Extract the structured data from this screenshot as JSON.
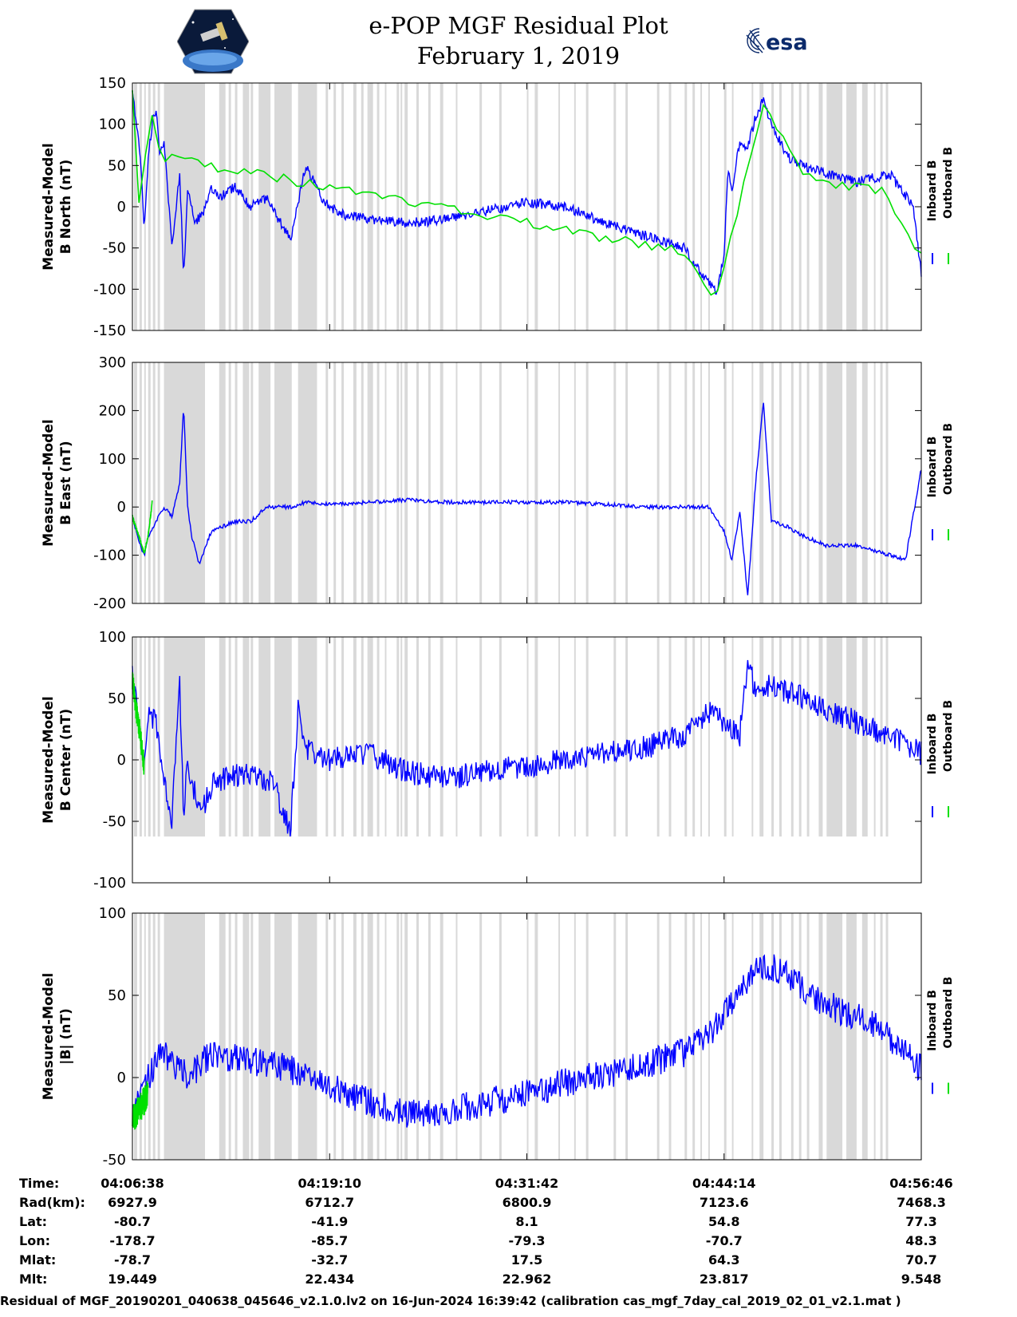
{
  "header": {
    "title": "e-POP MGF Residual Plot",
    "date": "February 1, 2019",
    "logo_left": "CASSIOPE mission patch",
    "logo_right": "esa"
  },
  "colors": {
    "inboard": "#0000ff",
    "outboard": "#00e000",
    "shade": "#d9d9d9",
    "axis": "#000000"
  },
  "legend": {
    "inboard": "Inboard B",
    "outboard": "Outboard B"
  },
  "chart_data": [
    {
      "type": "line",
      "ylabel_line1": "Measured-Model",
      "ylabel_line2": "B North (nT)",
      "ylim": [
        -150,
        150
      ],
      "yticks": [
        "150",
        "100",
        "50",
        "0",
        "-50",
        "-100",
        "-150"
      ],
      "ytick_values": [
        150,
        100,
        50,
        0,
        -50,
        -100,
        -150
      ],
      "series": [
        {
          "name": "Inboard B",
          "x": [
            0,
            0.01,
            0.015,
            0.02,
            0.025,
            0.03,
            0.035,
            0.04,
            0.05,
            0.06,
            0.065,
            0.07,
            0.08,
            0.09,
            0.1,
            0.11,
            0.13,
            0.15,
            0.17,
            0.2,
            0.22,
            0.24,
            0.25,
            0.27,
            0.3,
            0.35,
            0.4,
            0.45,
            0.5,
            0.55,
            0.6,
            0.65,
            0.7,
            0.72,
            0.74,
            0.75,
            0.755,
            0.76,
            0.77,
            0.78,
            0.79,
            0.8,
            0.81,
            0.82,
            0.83,
            0.85,
            0.88,
            0.92,
            0.96,
            0.99,
            1.0
          ],
          "y": [
            140,
            60,
            -25,
            60,
            100,
            120,
            60,
            80,
            -50,
            40,
            -85,
            20,
            -20,
            -5,
            20,
            10,
            25,
            0,
            10,
            -40,
            50,
            10,
            0,
            -10,
            -15,
            -20,
            -15,
            -5,
            5,
            0,
            -20,
            -35,
            -50,
            -80,
            -105,
            -60,
            50,
            20,
            80,
            70,
            110,
            130,
            100,
            80,
            60,
            50,
            40,
            30,
            40,
            0,
            -80
          ]
        },
        {
          "name": "Outboard B",
          "x": [
            0,
            0.005,
            0.01,
            0.015,
            0.02,
            0.025,
            0.03,
            0.035,
            0.04,
            0.7,
            0.72,
            0.74,
            0.75,
            0.8,
            0.85,
            0.9,
            0.95,
            1.0
          ],
          "y": [
            145,
            50,
            -10,
            50,
            90,
            115,
            70,
            75,
            60,
            -55,
            -85,
            -110,
            -70,
            120,
            40,
            25,
            20,
            -60
          ]
        }
      ]
    },
    {
      "type": "line",
      "ylabel_line1": "Measured-Model",
      "ylabel_line2": "B East (nT)",
      "ylim": [
        -200,
        300
      ],
      "yticks": [
        "300",
        "200",
        "100",
        "0",
        "-100",
        "-200"
      ],
      "ytick_values": [
        300,
        200,
        100,
        0,
        -100,
        -200
      ],
      "series": [
        {
          "name": "Inboard B",
          "x": [
            0,
            0.01,
            0.015,
            0.02,
            0.03,
            0.04,
            0.05,
            0.06,
            0.065,
            0.07,
            0.075,
            0.085,
            0.1,
            0.13,
            0.15,
            0.17,
            0.2,
            0.22,
            0.25,
            0.3,
            0.35,
            0.4,
            0.45,
            0.5,
            0.55,
            0.6,
            0.65,
            0.7,
            0.73,
            0.75,
            0.76,
            0.77,
            0.78,
            0.79,
            0.8,
            0.81,
            0.83,
            0.85,
            0.88,
            0.92,
            0.96,
            0.98,
            1.0
          ],
          "y": [
            -20,
            -80,
            -100,
            -60,
            -30,
            0,
            -20,
            50,
            210,
            0,
            -60,
            -120,
            -50,
            -30,
            -30,
            0,
            0,
            10,
            5,
            10,
            15,
            10,
            10,
            10,
            10,
            5,
            0,
            0,
            0,
            -50,
            -110,
            -10,
            -185,
            50,
            220,
            -30,
            -40,
            -60,
            -80,
            -80,
            -100,
            -110,
            80
          ]
        },
        {
          "name": "Outboard B",
          "x": [
            0,
            0.01,
            0.015,
            0.02,
            0.025
          ],
          "y": [
            -20,
            -70,
            -95,
            -60,
            10
          ]
        }
      ]
    },
    {
      "type": "line",
      "ylabel_line1": "Measured-Model",
      "ylabel_line2": "B Center (nT)",
      "ylim": [
        -100,
        100
      ],
      "yticks": [
        "100",
        "50",
        "0",
        "-50",
        "-100"
      ],
      "ytick_values": [
        100,
        50,
        0,
        -50,
        -100
      ],
      "series": [
        {
          "name": "Inboard B",
          "x": [
            0,
            0.01,
            0.015,
            0.02,
            0.03,
            0.04,
            0.05,
            0.06,
            0.065,
            0.07,
            0.08,
            0.09,
            0.1,
            0.12,
            0.15,
            0.18,
            0.2,
            0.21,
            0.22,
            0.23,
            0.25,
            0.3,
            0.35,
            0.4,
            0.45,
            0.5,
            0.55,
            0.6,
            0.65,
            0.7,
            0.73,
            0.75,
            0.77,
            0.78,
            0.79,
            0.8,
            0.81,
            0.83,
            0.87,
            0.92,
            0.96,
            1.0
          ],
          "y": [
            70,
            20,
            -10,
            40,
            30,
            -20,
            -50,
            60,
            -50,
            0,
            -30,
            -40,
            -20,
            -15,
            -10,
            -20,
            -60,
            40,
            10,
            5,
            0,
            5,
            -10,
            -15,
            -10,
            -5,
            0,
            5,
            10,
            20,
            40,
            30,
            20,
            80,
            55,
            60,
            60,
            55,
            45,
            30,
            20,
            5
          ]
        },
        {
          "name": "Outboard B",
          "x": [
            0,
            0.005,
            0.01,
            0.015
          ],
          "y": [
            65,
            40,
            20,
            -5
          ]
        }
      ]
    },
    {
      "type": "line",
      "ylabel_line1": "Measured-Model",
      "ylabel_line2": "|B| (nT)",
      "ylim": [
        -50,
        100
      ],
      "yticks": [
        "100",
        "50",
        "0",
        "-50"
      ],
      "ytick_values": [
        100,
        50,
        0,
        -50
      ],
      "series": [
        {
          "name": "Inboard B",
          "x": [
            0,
            0.02,
            0.03,
            0.04,
            0.05,
            0.06,
            0.07,
            0.09,
            0.1,
            0.12,
            0.15,
            0.2,
            0.25,
            0.3,
            0.35,
            0.4,
            0.45,
            0.5,
            0.55,
            0.6,
            0.65,
            0.7,
            0.73,
            0.76,
            0.78,
            0.8,
            0.82,
            0.86,
            0.9,
            0.95,
            1.0
          ],
          "y": [
            -25,
            0,
            10,
            15,
            10,
            5,
            0,
            10,
            15,
            12,
            10,
            5,
            -5,
            -15,
            -22,
            -20,
            -15,
            -10,
            -3,
            2,
            8,
            15,
            25,
            45,
            60,
            68,
            65,
            50,
            40,
            30,
            5
          ]
        },
        {
          "name": "Outboard B",
          "x": [
            0,
            0.01,
            0.02
          ],
          "y": [
            -25,
            -18,
            -10
          ]
        }
      ]
    }
  ],
  "xticks": [
    "04:06:38",
    "04:19:10",
    "04:31:42",
    "04:44:14",
    "04:56:46"
  ],
  "ephemeris": [
    {
      "label": "Time:",
      "values": [
        "04:06:38",
        "04:19:10",
        "04:31:42",
        "04:44:14",
        "04:56:46"
      ]
    },
    {
      "label": "Rad(km):",
      "values": [
        "6927.9",
        "6712.7",
        "6800.9",
        "7123.6",
        "7468.3"
      ]
    },
    {
      "label": "Lat:",
      "values": [
        "-80.7",
        "-41.9",
        "8.1",
        "54.8",
        "77.3"
      ]
    },
    {
      "label": "Lon:",
      "values": [
        "-178.7",
        "-85.7",
        "-79.3",
        "-70.7",
        "48.3"
      ]
    },
    {
      "label": "Mlat:",
      "values": [
        "-78.7",
        "-32.7",
        "17.5",
        "64.3",
        "70.7"
      ]
    },
    {
      "label": "Mlt:",
      "values": [
        "19.449",
        "22.434",
        "22.962",
        "23.817",
        "9.548"
      ]
    }
  ],
  "shading_intervals": [
    [
      0.002,
      0.006
    ],
    [
      0.009,
      0.012
    ],
    [
      0.015,
      0.017
    ],
    [
      0.02,
      0.023
    ],
    [
      0.026,
      0.029
    ],
    [
      0.032,
      0.035
    ],
    [
      0.04,
      0.092
    ],
    [
      0.11,
      0.118
    ],
    [
      0.122,
      0.125
    ],
    [
      0.13,
      0.133
    ],
    [
      0.14,
      0.148
    ],
    [
      0.15,
      0.153
    ],
    [
      0.16,
      0.175
    ],
    [
      0.18,
      0.202
    ],
    [
      0.21,
      0.234
    ],
    [
      0.245,
      0.248
    ],
    [
      0.255,
      0.258
    ],
    [
      0.265,
      0.268
    ],
    [
      0.28,
      0.284
    ],
    [
      0.29,
      0.293
    ],
    [
      0.298,
      0.3
    ],
    [
      0.3,
      0.305
    ],
    [
      0.31,
      0.313
    ],
    [
      0.32,
      0.322
    ],
    [
      0.335,
      0.338
    ],
    [
      0.34,
      0.342
    ],
    [
      0.345,
      0.349
    ],
    [
      0.36,
      0.363
    ],
    [
      0.375,
      0.378
    ],
    [
      0.39,
      0.394
    ],
    [
      0.41,
      0.412
    ],
    [
      0.44,
      0.443
    ],
    [
      0.465,
      0.468
    ],
    [
      0.5,
      0.502
    ],
    [
      0.51,
      0.514
    ],
    [
      0.54,
      0.542
    ],
    [
      0.56,
      0.562
    ],
    [
      0.575,
      0.578
    ],
    [
      0.61,
      0.613
    ],
    [
      0.625,
      0.628
    ],
    [
      0.665,
      0.668
    ],
    [
      0.68,
      0.683
    ],
    [
      0.7,
      0.703
    ],
    [
      0.71,
      0.713
    ],
    [
      0.72,
      0.722
    ],
    [
      0.73,
      0.732
    ],
    [
      0.75,
      0.753
    ],
    [
      0.76,
      0.762
    ],
    [
      0.785,
      0.787
    ],
    [
      0.795,
      0.8
    ],
    [
      0.81,
      0.813
    ],
    [
      0.82,
      0.823
    ],
    [
      0.835,
      0.838
    ],
    [
      0.845,
      0.848
    ],
    [
      0.855,
      0.858
    ],
    [
      0.87,
      0.875
    ],
    [
      0.88,
      0.9
    ],
    [
      0.905,
      0.918
    ],
    [
      0.925,
      0.932
    ],
    [
      0.94,
      0.942
    ],
    [
      0.948,
      0.951
    ],
    [
      0.955,
      0.958
    ]
  ],
  "footer": "Residual of MGF_20190201_040638_045646_v2.1.0.lv2 on 16-Jun-2024 16:39:42 (calibration cas_mgf_7day_cal_2019_02_01_v2.1.mat )"
}
